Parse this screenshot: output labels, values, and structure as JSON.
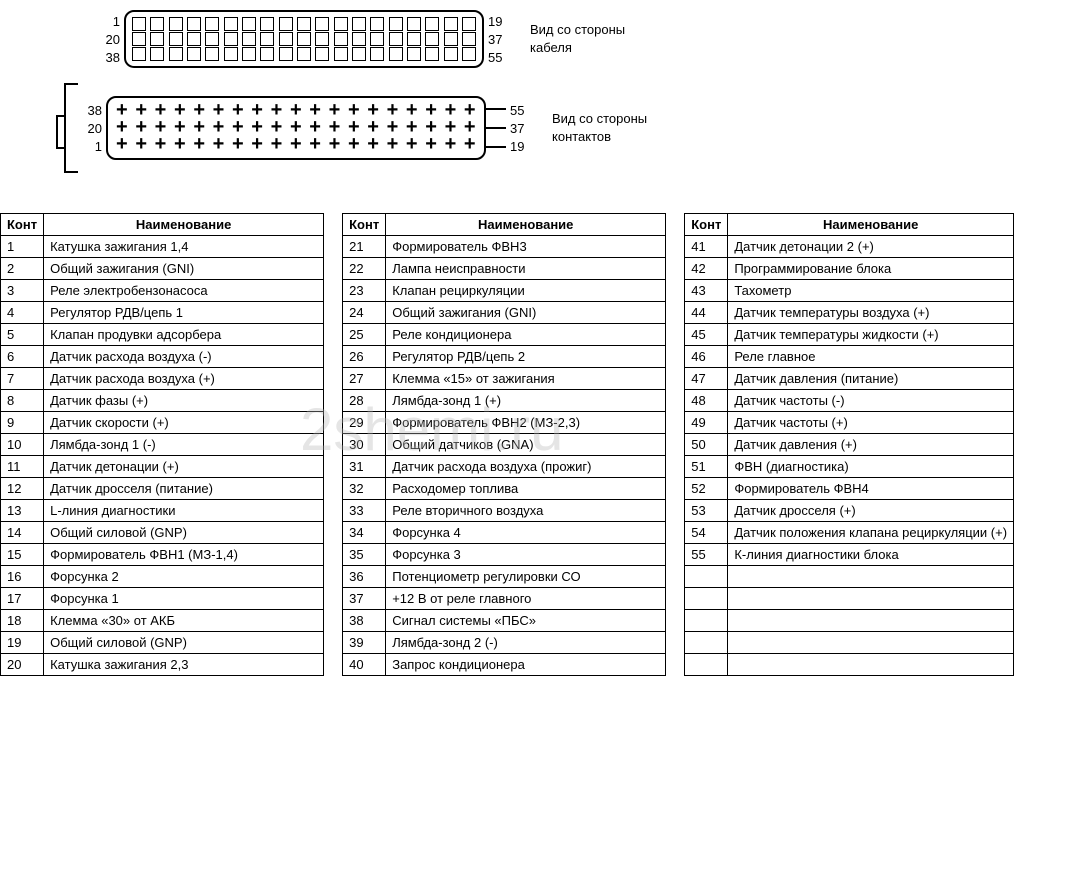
{
  "diagram": {
    "top_connector": {
      "left_pins": [
        "1",
        "20",
        "38"
      ],
      "right_pins": [
        "19",
        "37",
        "55"
      ],
      "caption_line1": "Вид со стороны",
      "caption_line2": "кабеля",
      "pins_per_row": 19,
      "rows": 3,
      "pin_style": "square",
      "border_color": "#000000"
    },
    "bottom_connector": {
      "left_pins": [
        "38",
        "20",
        "1"
      ],
      "right_pins": [
        "55",
        "37",
        "19"
      ],
      "caption_line1": "Вид со стороны",
      "caption_line2": "контактов",
      "pins_per_row": 19,
      "rows": 3,
      "pin_style": "cross",
      "border_color": "#000000"
    }
  },
  "watermark": "2shemi.ru",
  "table": {
    "headers": {
      "pin": "Конт",
      "name": "Наименование"
    },
    "border_color": "#000000",
    "font_size": 13,
    "background": "#ffffff",
    "columns": 3,
    "col1": [
      {
        "pin": "1",
        "name": "Катушка зажигания 1,4"
      },
      {
        "pin": "2",
        "name": "Общий зажигания (GNI)"
      },
      {
        "pin": "3",
        "name": "Реле электробензонасоса"
      },
      {
        "pin": "4",
        "name": "Регулятор РДВ/цепь 1"
      },
      {
        "pin": "5",
        "name": "Клапан продувки адсорбера"
      },
      {
        "pin": "6",
        "name": "Датчик расхода воздуха (-)"
      },
      {
        "pin": "7",
        "name": "Датчик расхода воздуха (+)"
      },
      {
        "pin": "8",
        "name": "Датчик фазы (+)"
      },
      {
        "pin": "9",
        "name": "Датчик скорости (+)"
      },
      {
        "pin": "10",
        "name": "Лямбда-зонд 1 (-)"
      },
      {
        "pin": "11",
        "name": "Датчик детонации (+)"
      },
      {
        "pin": "12",
        "name": "Датчик дросселя (питание)"
      },
      {
        "pin": "13",
        "name": "L-линия диагностики"
      },
      {
        "pin": "14",
        "name": "Общий силовой (GNP)"
      },
      {
        "pin": "15",
        "name": "Формирователь ФВН1 (МЗ-1,4)"
      },
      {
        "pin": "16",
        "name": "Форсунка 2"
      },
      {
        "pin": "17",
        "name": "Форсунка 1"
      },
      {
        "pin": "18",
        "name": "Клемма «30» от АКБ"
      },
      {
        "pin": "19",
        "name": "Общий силовой (GNP)"
      },
      {
        "pin": "20",
        "name": "Катушка зажигания 2,3"
      }
    ],
    "col2": [
      {
        "pin": "21",
        "name": "Формирователь ФВН3"
      },
      {
        "pin": "22",
        "name": "Лампа неисправности"
      },
      {
        "pin": "23",
        "name": "Клапан рециркуляции"
      },
      {
        "pin": "24",
        "name": "Общий зажигания (GNI)"
      },
      {
        "pin": "25",
        "name": "Реле кондиционера"
      },
      {
        "pin": "26",
        "name": "Регулятор РДВ/цепь 2"
      },
      {
        "pin": "27",
        "name": "Клемма «15» от зажигания"
      },
      {
        "pin": "28",
        "name": "Лямбда-зонд 1 (+)"
      },
      {
        "pin": "29",
        "name": "Формирователь ФВН2 (МЗ-2,3)"
      },
      {
        "pin": "30",
        "name": "Общий датчиков (GNA)"
      },
      {
        "pin": "31",
        "name": "Датчик расхода воздуха (прожиг)"
      },
      {
        "pin": "32",
        "name": "Расходомер топлива"
      },
      {
        "pin": "33",
        "name": "Реле вторичного воздуха"
      },
      {
        "pin": "34",
        "name": "Форсунка 4"
      },
      {
        "pin": "35",
        "name": "Форсунка 3"
      },
      {
        "pin": "36",
        "name": "Потенциометр регулировки СО"
      },
      {
        "pin": "37",
        "name": "+12 В от реле главного"
      },
      {
        "pin": "38",
        "name": "Сигнал системы «ПБС»"
      },
      {
        "pin": "39",
        "name": "Лямбда-зонд 2 (-)"
      },
      {
        "pin": "40",
        "name": "Запрос кондиционера"
      }
    ],
    "col3": [
      {
        "pin": "41",
        "name": "Датчик детонации 2 (+)"
      },
      {
        "pin": "42",
        "name": "Программирование блока"
      },
      {
        "pin": "43",
        "name": "Тахометр"
      },
      {
        "pin": "44",
        "name": "Датчик температуры воздуха (+)"
      },
      {
        "pin": "45",
        "name": "Датчик температуры жидкости (+)"
      },
      {
        "pin": "46",
        "name": "Реле главное"
      },
      {
        "pin": "47",
        "name": "Датчик давления (питание)"
      },
      {
        "pin": "48",
        "name": "Датчик частоты (-)"
      },
      {
        "pin": "49",
        "name": "Датчик частоты (+)"
      },
      {
        "pin": "50",
        "name": "Датчик давления (+)"
      },
      {
        "pin": "51",
        "name": "ФВН (диагностика)"
      },
      {
        "pin": "52",
        "name": "Формирователь ФВН4"
      },
      {
        "pin": "53",
        "name": "Датчик дросселя (+)"
      },
      {
        "pin": "54",
        "name": "Датчик положения клапана рециркуляции (+)"
      },
      {
        "pin": "55",
        "name": "К-линия диагностики блока"
      },
      {
        "pin": "",
        "name": ""
      },
      {
        "pin": "",
        "name": ""
      },
      {
        "pin": "",
        "name": ""
      },
      {
        "pin": "",
        "name": ""
      },
      {
        "pin": "",
        "name": ""
      }
    ]
  }
}
